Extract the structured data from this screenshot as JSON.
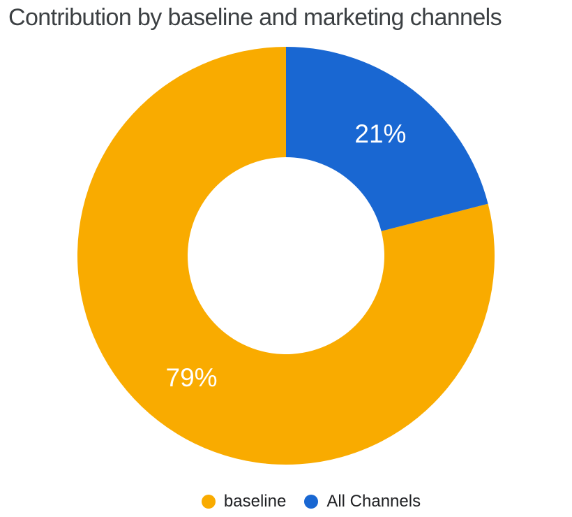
{
  "title": "Contribution by baseline and marketing channels",
  "chart_data": {
    "type": "pie",
    "subtype": "donut",
    "title": "Contribution by baseline and marketing channels",
    "categories": [
      "baseline",
      "All Channels"
    ],
    "values": [
      79,
      21
    ],
    "unit": "%",
    "slice_labels": [
      "79%",
      "21%"
    ],
    "colors": [
      "#F9AB00",
      "#1967D2"
    ],
    "slice_label_color": "#FFFFFF",
    "start_angle_deg": 0,
    "direction": "counterclockwise",
    "inner_radius_ratio": 0.47,
    "grid": false,
    "legend_position": "bottom"
  },
  "legend": {
    "items": [
      {
        "label": "baseline",
        "color": "#F9AB00"
      },
      {
        "label": "All Channels",
        "color": "#1967D2"
      }
    ]
  },
  "style": {
    "background": "#FFFFFF",
    "title_color": "#3C4043",
    "legend_text_color": "#202124"
  }
}
